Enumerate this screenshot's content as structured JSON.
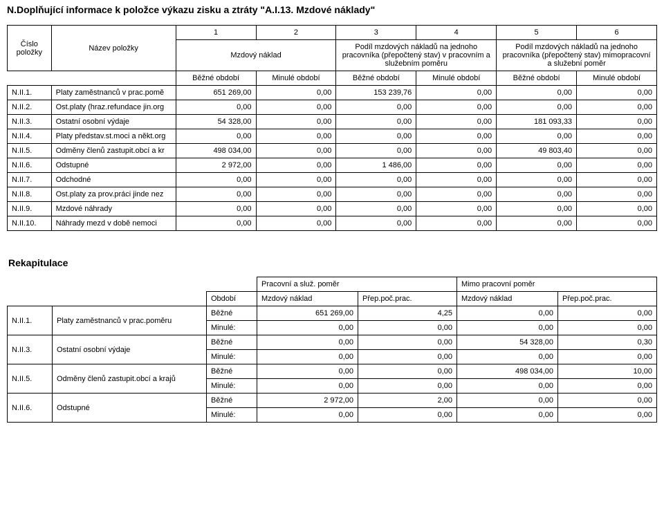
{
  "title": "N.Doplňující informace k položce výkazu zisku a ztráty \"A.I.13. Mzdové náklady\"",
  "mainTable": {
    "numberHeaders": [
      "1",
      "2",
      "3",
      "4",
      "5",
      "6"
    ],
    "leftHeaders": {
      "codeLabel": "Číslo položky",
      "nameLabel": "Název položky"
    },
    "groupHeaders": {
      "g1": "Mzdový náklad",
      "g2": "Podíl mzdových nákladů na jednoho pracovníka (přepočtený stav) v pracovním a služebním poměru",
      "g3": "Podíl mzdových nákladů na jednoho pracovníka (přepočtený stav) mimopracovní a služební poměr"
    },
    "subHeaders": {
      "bezne": "Běžné období",
      "minule": "Minulé období"
    },
    "rows": [
      {
        "code": "N.II.1.",
        "name": "Platy zaměstnanců v prac.pomě",
        "v": [
          "651 269,00",
          "0,00",
          "153 239,76",
          "0,00",
          "0,00",
          "0,00"
        ]
      },
      {
        "code": "N.II.2.",
        "name": "Ost.platy (hraz.refundace jin.org",
        "v": [
          "0,00",
          "0,00",
          "0,00",
          "0,00",
          "0,00",
          "0,00"
        ]
      },
      {
        "code": "N.II.3.",
        "name": "Ostatní osobní výdaje",
        "v": [
          "54 328,00",
          "0,00",
          "0,00",
          "0,00",
          "181 093,33",
          "0,00"
        ]
      },
      {
        "code": "N.II.4.",
        "name": "Platy představ.st.moci a někt.org",
        "v": [
          "0,00",
          "0,00",
          "0,00",
          "0,00",
          "0,00",
          "0,00"
        ]
      },
      {
        "code": "N.II.5.",
        "name": "Odměny členů zastupit.obcí a kr",
        "v": [
          "498 034,00",
          "0,00",
          "0,00",
          "0,00",
          "49 803,40",
          "0,00"
        ]
      },
      {
        "code": "N.II.6.",
        "name": "Odstupné",
        "v": [
          "2 972,00",
          "0,00",
          "1 486,00",
          "0,00",
          "0,00",
          "0,00"
        ]
      },
      {
        "code": "N.II.7.",
        "name": "Odchodné",
        "v": [
          "0,00",
          "0,00",
          "0,00",
          "0,00",
          "0,00",
          "0,00"
        ]
      },
      {
        "code": "N.II.8.",
        "name": "Ost.platy za prov.práci jinde nez",
        "v": [
          "0,00",
          "0,00",
          "0,00",
          "0,00",
          "0,00",
          "0,00"
        ]
      },
      {
        "code": "N.II.9.",
        "name": "Mzdové náhrady",
        "v": [
          "0,00",
          "0,00",
          "0,00",
          "0,00",
          "0,00",
          "0,00"
        ]
      },
      {
        "code": "N.II.10.",
        "name": "Náhrady mezd v době nemoci",
        "v": [
          "0,00",
          "0,00",
          "0,00",
          "0,00",
          "0,00",
          "0,00"
        ]
      }
    ]
  },
  "recap": {
    "title": "Rekapitulace",
    "groupHeaders": {
      "g1": "Pracovní a služ. poměr",
      "g2": "Mimo pracovní poměr"
    },
    "colHeaders": {
      "period": "Období",
      "mz": "Mzdový náklad",
      "prep": "Přep.poč.prac."
    },
    "periodLabels": {
      "bezne": "Běžné",
      "minule": "Minulé:"
    },
    "rows": [
      {
        "code": "N.II.1.",
        "name": "Platy zaměstnanců v prac.poměru",
        "bezne": [
          "651 269,00",
          "4,25",
          "0,00",
          "0,00"
        ],
        "minule": [
          "0,00",
          "0,00",
          "0,00",
          "0,00"
        ]
      },
      {
        "code": "N.II.3.",
        "name": "Ostatní osobní výdaje",
        "bezne": [
          "0,00",
          "0,00",
          "54 328,00",
          "0,30"
        ],
        "minule": [
          "0,00",
          "0,00",
          "0,00",
          "0,00"
        ]
      },
      {
        "code": "N.II.5.",
        "name": "Odměny členů zastupit.obcí a krajů",
        "bezne": [
          "0,00",
          "0,00",
          "498 034,00",
          "10,00"
        ],
        "minule": [
          "0,00",
          "0,00",
          "0,00",
          "0,00"
        ]
      },
      {
        "code": "N.II.6.",
        "name": "Odstupné",
        "bezne": [
          "2 972,00",
          "2,00",
          "0,00",
          "0,00"
        ],
        "minule": [
          "0,00",
          "0,00",
          "0,00",
          "0,00"
        ]
      }
    ]
  }
}
